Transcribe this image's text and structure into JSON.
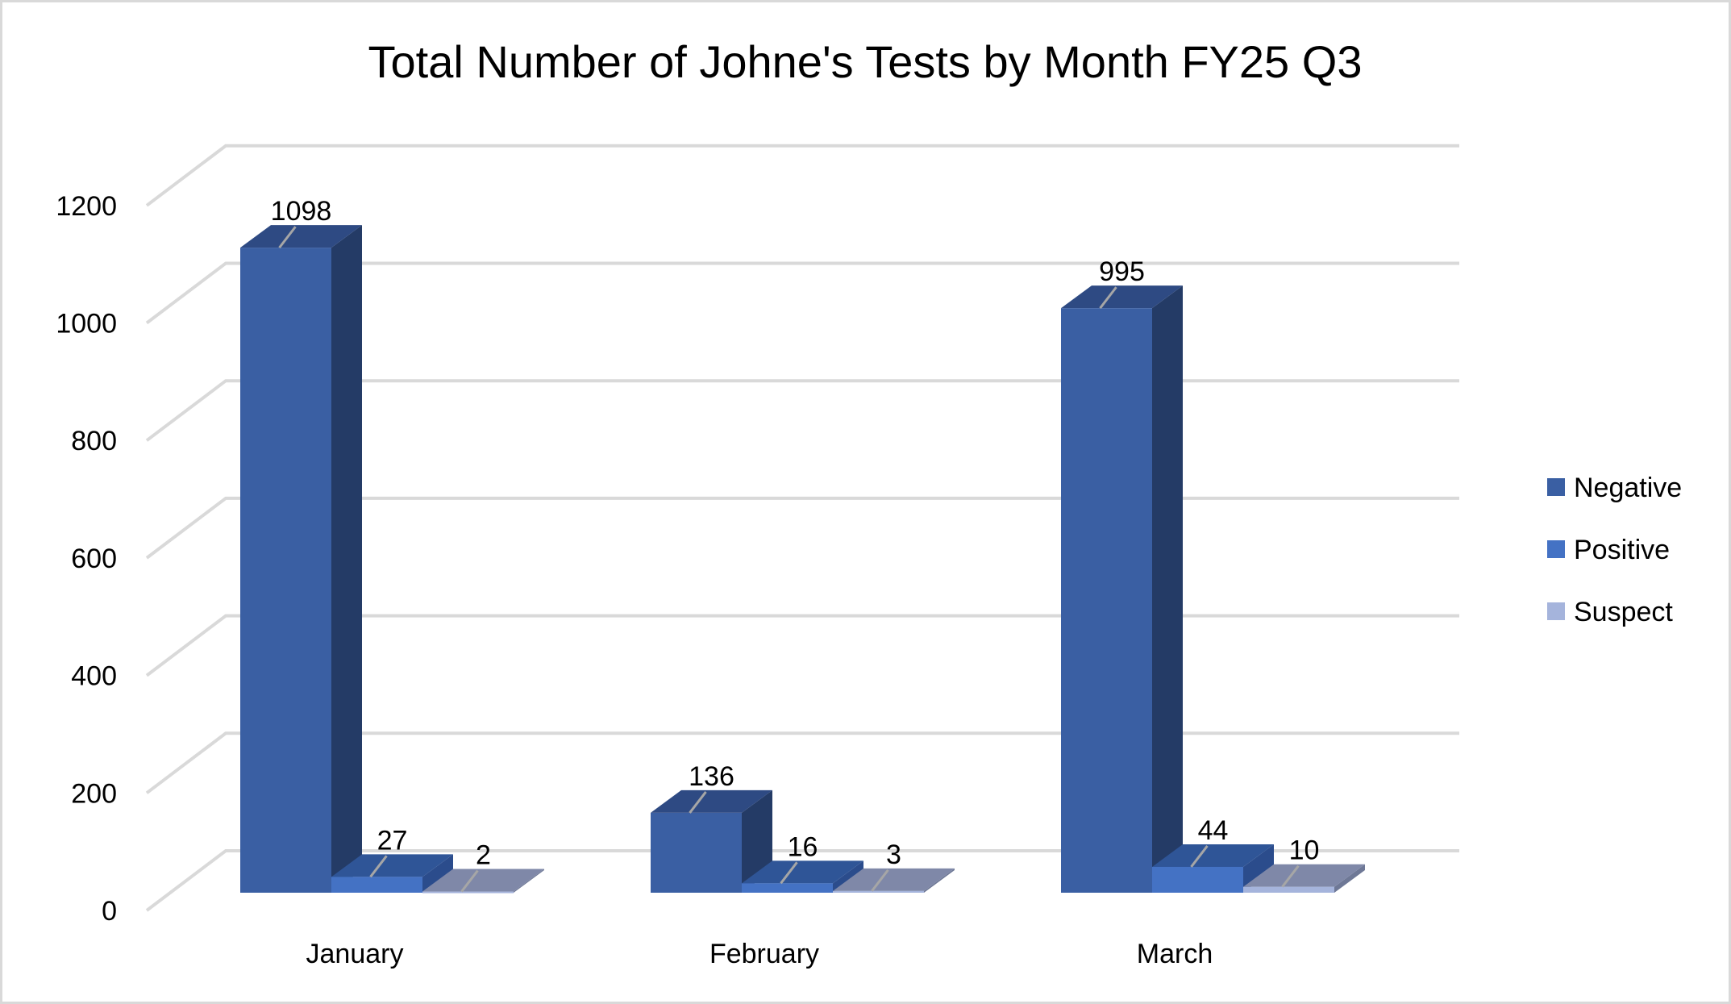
{
  "chart_data": {
    "type": "bar",
    "subtype": "3d-clustered-column",
    "title": "Total Number of Johne's Tests by Month FY25 Q3",
    "xlabel": "",
    "ylabel": "",
    "categories": [
      "January",
      "February",
      "March"
    ],
    "series": [
      {
        "name": "Negative",
        "values": [
          1098,
          136,
          995
        ]
      },
      {
        "name": "Positive",
        "values": [
          27,
          16,
          44
        ]
      },
      {
        "name": "Suspect",
        "values": [
          2,
          3,
          10
        ]
      }
    ],
    "ylim": [
      0,
      1200
    ],
    "yticks": [
      0,
      200,
      400,
      600,
      800,
      1000,
      1200
    ],
    "grid": true,
    "legend_position": "right",
    "data_labels": true
  },
  "colors": {
    "Negative": {
      "front": "#3A5FA3",
      "top": "#2E4A83",
      "side": "#243B66"
    },
    "Positive": {
      "front": "#4472C4",
      "top": "#2F5597",
      "side": "#2B4C8C"
    },
    "Suspect": {
      "front": "#A5B4DC",
      "top": "#7F88A8",
      "side": "#6E7896"
    },
    "grid": "#D9D9D9",
    "border": "#D9D9D9"
  }
}
